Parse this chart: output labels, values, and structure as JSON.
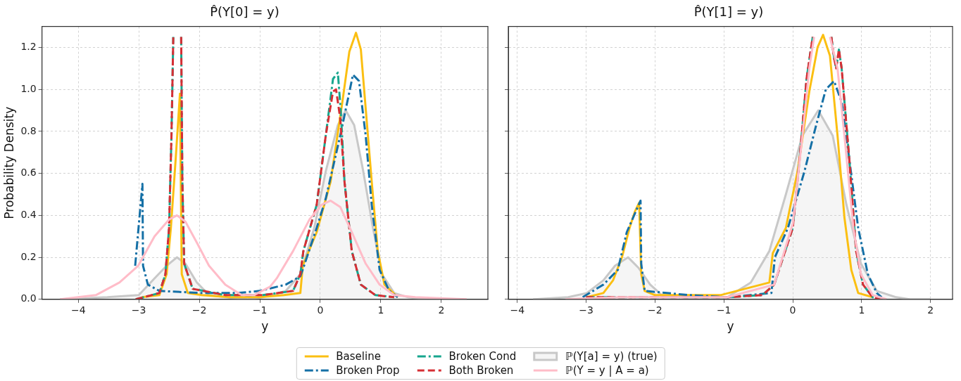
{
  "chart_data": [
    {
      "type": "line",
      "title": "P̂(Y[0] = y)",
      "xlabel": "y",
      "ylabel": "Probability Density",
      "xlim": [
        -4.6,
        2.77
      ],
      "xticks": [
        {
          "value": -4,
          "label": "−4"
        },
        {
          "value": -3,
          "label": "−3"
        },
        {
          "value": -2,
          "label": "−2"
        },
        {
          "value": -1,
          "label": "−1"
        },
        0,
        1,
        2
      ],
      "ylim": [
        0,
        1.3
      ],
      "yticks": [
        {
          "value": 0,
          "label": "0.0"
        },
        0.2,
        0.4,
        0.6,
        0.8,
        {
          "value": 1,
          "label": "1.0"
        },
        1.2
      ],
      "grid": true,
      "legend": "bottom",
      "series": [
        {
          "name": "Baseline",
          "color": "#fbbf12",
          "line_style": "solid",
          "x": [
            -2.95,
            -2.66,
            -2.54,
            -2.47,
            -2.39,
            -2.32,
            -2.29,
            -2.19,
            -1.96,
            -1.5,
            -1.0,
            -0.6,
            -0.33,
            -0.29,
            -0.06,
            0.17,
            0.36,
            0.48,
            0.59,
            0.67,
            0.75,
            0.85,
            0.95,
            1.06,
            1.28
          ],
          "values": [
            0.01,
            0.02,
            0.12,
            0.34,
            0.67,
            0.98,
            0.12,
            0.03,
            0.02,
            0.01,
            0.01,
            0.02,
            0.03,
            0.16,
            0.32,
            0.56,
            0.93,
            1.18,
            1.27,
            1.19,
            0.91,
            0.56,
            0.23,
            0.07,
            0.01
          ]
        },
        {
          "name": "Broken Prop",
          "color": "#1570a6",
          "line_style": "dashdot",
          "x": [
            -3.06,
            -2.94,
            -2.93,
            -2.85,
            -2.66,
            -1.96,
            -1.37,
            -1.0,
            -0.57,
            -0.33,
            -0.28,
            -0.06,
            0.09,
            0.33,
            0.54,
            0.64,
            0.75,
            0.85,
            0.98,
            1.14,
            1.28
          ],
          "values": [
            0.16,
            0.55,
            0.16,
            0.07,
            0.04,
            0.03,
            0.03,
            0.04,
            0.07,
            0.11,
            0.15,
            0.34,
            0.48,
            0.78,
            1.07,
            1.04,
            0.78,
            0.45,
            0.14,
            0.04,
            0.01
          ]
        },
        {
          "name": "Broken Cond",
          "color": "#17a68e",
          "line_style": "dashdot",
          "x": [
            -3.05,
            -2.66,
            -2.56,
            -2.5,
            -2.46,
            -2.43,
            -2.37,
            -2.3,
            -2.28,
            -2.25,
            -2.11,
            -1.57,
            -0.95,
            -0.45,
            -0.33,
            -0.28,
            -0.06,
            0.09,
            0.21,
            0.29,
            0.34,
            0.4,
            0.52,
            0.67,
            0.91,
            1.22
          ],
          "values": [
            0,
            0.03,
            0.12,
            0.34,
            0.78,
            1.25,
            null,
            1.25,
            0.56,
            0.17,
            0.05,
            0.02,
            0.02,
            0.04,
            0.12,
            0.23,
            0.45,
            0.78,
            1.05,
            1.08,
            0.89,
            0.56,
            0.23,
            0.07,
            0.02,
            0.01
          ]
        },
        {
          "name": "Both Broken",
          "color": "#d62f35",
          "line_style": "dashed",
          "x": [
            -3.05,
            -2.66,
            -2.56,
            -2.5,
            -2.46,
            -2.43,
            -2.37,
            -2.3,
            -2.28,
            -2.25,
            -2.11,
            -1.57,
            -0.95,
            -0.45,
            -0.33,
            -0.28,
            -0.06,
            0.09,
            0.21,
            0.26,
            0.33,
            0.4,
            0.52,
            0.67,
            0.91,
            1.22
          ],
          "values": [
            0,
            0.03,
            0.12,
            0.34,
            0.78,
            1.25,
            null,
            1.25,
            0.56,
            0.17,
            0.05,
            0.02,
            0.02,
            0.04,
            0.12,
            0.23,
            0.45,
            0.78,
            0.99,
            1.0,
            0.86,
            0.56,
            0.23,
            0.07,
            0.02,
            0.01
          ]
        },
        {
          "name": "ℙ(Y[a] = y) (true)",
          "type": "area",
          "color": "#c8c8c8",
          "line_style": "solid",
          "x": [
            -4.3,
            -3.52,
            -3.0,
            -2.74,
            -2.54,
            -2.37,
            -2.23,
            -2.04,
            -1.84,
            -1.57,
            -1.2,
            -0.95,
            -0.57,
            -0.33,
            -0.1,
            0.09,
            0.29,
            0.42,
            0.56,
            0.71,
            0.87,
            1.02,
            1.22,
            1.45,
            1.76,
            2.3
          ],
          "values": [
            0,
            0.01,
            0.02,
            0.1,
            0.16,
            0.2,
            0.17,
            0.08,
            0.02,
            0.01,
            0,
            0.01,
            0.04,
            0.12,
            0.34,
            0.61,
            0.83,
            0.9,
            0.83,
            0.61,
            0.34,
            0.12,
            0.03,
            0.01,
            0,
            0
          ]
        },
        {
          "name": "ℙ(Y = y | A = a)",
          "color": "#ffbcc8",
          "line_style": "solid",
          "x": [
            -4.3,
            -3.71,
            -3.32,
            -3.01,
            -2.74,
            -2.5,
            -2.37,
            -2.23,
            -2.04,
            -1.84,
            -1.57,
            -1.3,
            -1.1,
            -0.83,
            -0.72,
            -0.45,
            -0.18,
            0.02,
            0.17,
            0.33,
            0.52,
            0.75,
            0.98,
            1.22,
            1.57,
            2.42
          ],
          "values": [
            0,
            0.02,
            0.08,
            0.16,
            0.3,
            0.38,
            0.4,
            0.37,
            0.27,
            0.16,
            0.07,
            0.02,
            0.02,
            0.06,
            0.1,
            0.23,
            0.38,
            0.45,
            0.47,
            0.44,
            0.32,
            0.17,
            0.07,
            0.02,
            0.01,
            0
          ]
        }
      ]
    },
    {
      "type": "line",
      "title": "P̂(Y[1] = y)",
      "xlabel": "y",
      "xlim": [
        -4.13,
        2.32
      ],
      "xticks": [
        {
          "value": -4,
          "label": "−4"
        },
        {
          "value": -3,
          "label": "−3"
        },
        {
          "value": -2,
          "label": "−2"
        },
        {
          "value": -1,
          "label": "−1"
        },
        0,
        1,
        2
      ],
      "ylim": [
        0,
        1.3
      ],
      "yticks": [
        0,
        0.2,
        0.4,
        0.6,
        0.8,
        1,
        1.2
      ],
      "grid": true,
      "tick_labels": "x",
      "series": [
        {
          "color": "#fbbf12",
          "line_style": "solid",
          "x": [
            -2.99,
            -2.75,
            -2.61,
            -2.48,
            -2.37,
            -2.29,
            -2.23,
            -2.2,
            -2.15,
            -2.0,
            -1.05,
            -0.34,
            -0.29,
            -0.1,
            0.07,
            0.24,
            0.36,
            0.44,
            0.54,
            0.65,
            0.75,
            0.85,
            0.95,
            1.16
          ],
          "values": [
            0.01,
            0.03,
            0.09,
            0.2,
            0.34,
            0.42,
            0.46,
            0.12,
            0.04,
            0.02,
            0.02,
            0.08,
            0.22,
            0.34,
            0.61,
            0.99,
            1.2,
            1.26,
            1.16,
            0.78,
            0.39,
            0.14,
            0.03,
            0.01
          ]
        },
        {
          "color": "#1570a6",
          "line_style": "dashdot",
          "x": [
            -3.05,
            -2.75,
            -2.54,
            -2.41,
            -2.21,
            -2.2,
            -2.15,
            -1.5,
            -0.95,
            -0.31,
            -0.26,
            -0.07,
            0.17,
            0.34,
            0.48,
            0.6,
            0.71,
            0.82,
            0.95,
            1.09,
            1.22,
            1.29
          ],
          "values": [
            0.01,
            0.07,
            0.14,
            0.32,
            0.47,
            0.17,
            0.04,
            0.02,
            0.01,
            0.03,
            0.2,
            0.34,
            0.61,
            0.83,
            1.0,
            1.04,
            0.94,
            0.67,
            0.34,
            0.12,
            0.03,
            0.01
          ]
        },
        {
          "color": "#17a68e",
          "line_style": "dashdot",
          "x": [
            -3.0,
            -2.0,
            -0.95,
            -0.44,
            -0.27,
            0,
            0.1,
            0.2,
            0.29,
            0.42,
            0.56,
            0.6,
            0.63,
            0.67,
            0.71,
            0.82,
            0.92,
            1.02,
            1.16,
            1.29
          ],
          "values": [
            0.01,
            0.01,
            0.01,
            0.02,
            0.07,
            0.34,
            0.67,
            1.05,
            1.25,
            null,
            1.25,
            1.15,
            1.1,
            1.19,
            1.1,
            0.67,
            0.23,
            0.07,
            0.01,
            0
          ]
        },
        {
          "color": "#d62f35",
          "line_style": "dashed",
          "x": [
            -3.0,
            -2.0,
            -0.95,
            -0.44,
            -0.27,
            0,
            0.1,
            0.2,
            0.29,
            0.42,
            0.56,
            0.6,
            0.63,
            0.67,
            0.71,
            0.82,
            0.92,
            1.02,
            1.16,
            1.29
          ],
          "values": [
            0.01,
            0.01,
            0.01,
            0.02,
            0.07,
            0.34,
            0.67,
            1.05,
            1.25,
            null,
            1.25,
            1.15,
            1.1,
            1.19,
            1.1,
            0.67,
            0.23,
            0.07,
            0.01,
            0
          ]
        },
        {
          "type": "area",
          "color": "#c8c8c8",
          "line_style": "solid",
          "x": [
            -3.77,
            -3.26,
            -2.99,
            -2.75,
            -2.58,
            -2.39,
            -2.24,
            -2.07,
            -1.9,
            -1.56,
            -0.95,
            -0.61,
            -0.34,
            -0.1,
            0.14,
            0.37,
            0.58,
            0.78,
            0.99,
            1.22,
            1.5,
            1.7,
            2.0
          ],
          "values": [
            0,
            0.01,
            0.03,
            0.09,
            0.16,
            0.2,
            0.15,
            0.07,
            0.02,
            0.01,
            0.01,
            0.08,
            0.23,
            0.5,
            0.78,
            0.9,
            0.78,
            0.45,
            0.17,
            0.04,
            0.01,
            0,
            0
          ]
        },
        {
          "color": "#ffbcc8",
          "line_style": "solid",
          "x": [
            -3.3,
            -2.5,
            -1.5,
            -0.95,
            -0.27,
            0,
            0.14,
            0.24,
            0.31,
            0.42,
            0.54,
            0.65,
            0.75,
            0.88,
            0.99,
            1.16,
            1.36
          ],
          "values": [
            0,
            0.01,
            0.01,
            0.01,
            0.07,
            0.36,
            0.78,
            1.1,
            1.25,
            null,
            1.25,
            1.1,
            0.78,
            0.34,
            0.12,
            0.02,
            0
          ]
        }
      ]
    }
  ]
}
